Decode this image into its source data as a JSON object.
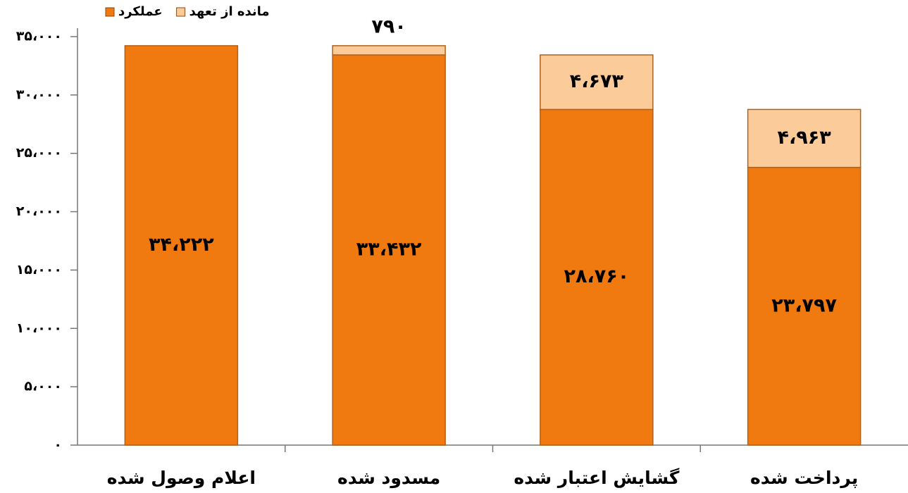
{
  "chart_data": {
    "type": "stacked_bar",
    "categories": [
      "اعلام وصول شده",
      "مسدود شده",
      "گشایش اعتبار شده",
      "پرداخت شده"
    ],
    "series": [
      {
        "name": "عملکرد",
        "color": "#f07a10",
        "values": [
          34222,
          33432,
          28760,
          23797
        ],
        "value_labels": [
          "۳۴،۲۲۲",
          "۳۳،۴۳۲",
          "۲۸،۷۶۰",
          "۲۳،۷۹۷"
        ]
      },
      {
        "name": "مانده از تعهد",
        "color": "#fccb9a",
        "values": [
          null,
          790,
          4673,
          4963
        ],
        "value_labels": [
          null,
          "۷۹۰",
          "۴،۶۷۳",
          "۴،۹۶۳"
        ]
      }
    ],
    "ylim": [
      0,
      35000
    ],
    "yticks": [
      {
        "value": 0,
        "label": "۰"
      },
      {
        "value": 5000,
        "label": "۵،۰۰۰"
      },
      {
        "value": 10000,
        "label": "۱۰،۰۰۰"
      },
      {
        "value": 15000,
        "label": "۱۵،۰۰۰"
      },
      {
        "value": 20000,
        "label": "۲۰،۰۰۰"
      },
      {
        "value": 25000,
        "label": "۲۵،۰۰۰"
      },
      {
        "value": 30000,
        "label": "۳۰،۰۰۰"
      },
      {
        "value": 35000,
        "label": "۳۵،۰۰۰"
      }
    ],
    "legend": "top-left"
  }
}
